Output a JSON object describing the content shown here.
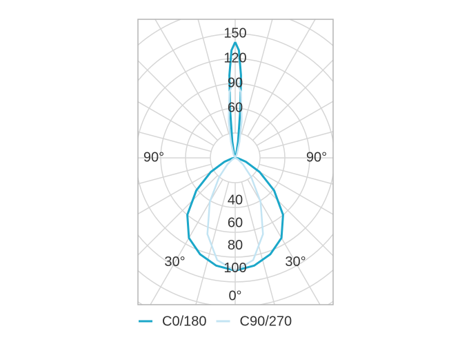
{
  "chart_data": [
    {
      "type": "polar",
      "hemisphere": "lower",
      "rlim": [
        0,
        110
      ],
      "rticks": [
        40,
        60,
        80,
        100
      ],
      "thetaticks": [
        {
          "value": 0,
          "label": "0°"
        },
        {
          "value": -30,
          "label": "30°"
        },
        {
          "value": 30,
          "label": "30°"
        },
        {
          "value": -90,
          "label": "90°"
        },
        {
          "value": 90,
          "label": "90°"
        }
      ],
      "legend": "bottom",
      "series": [
        {
          "name": "C0/180",
          "color": "#1ba7c9",
          "theta": [
            0,
            10,
            20,
            30,
            40,
            50,
            60,
            70,
            80,
            90
          ],
          "values": [
            100,
            97,
            91,
            82,
            66,
            45,
            25,
            10,
            3,
            0
          ]
        },
        {
          "name": "C90/270",
          "color": "#c3e4f3",
          "theta": [
            0,
            10,
            20,
            30,
            40,
            50,
            60,
            70
          ],
          "values": [
            100,
            92,
            72,
            45,
            22,
            9,
            3,
            0
          ]
        }
      ]
    },
    {
      "type": "polar",
      "hemisphere": "upper",
      "rlim": [
        0,
        150
      ],
      "rticks": [
        60,
        90,
        120,
        150
      ],
      "series": [
        {
          "color": "#1ba7c9",
          "theta": [
            0,
            2,
            4,
            6,
            10,
            20,
            30
          ],
          "values": [
            140,
            130,
            100,
            60,
            20,
            3,
            0
          ]
        },
        {
          "color": "#c3e4f3",
          "theta": [
            0,
            5,
            10,
            15,
            25,
            40
          ],
          "values": [
            95,
            80,
            45,
            20,
            5,
            0
          ]
        }
      ]
    }
  ]
}
